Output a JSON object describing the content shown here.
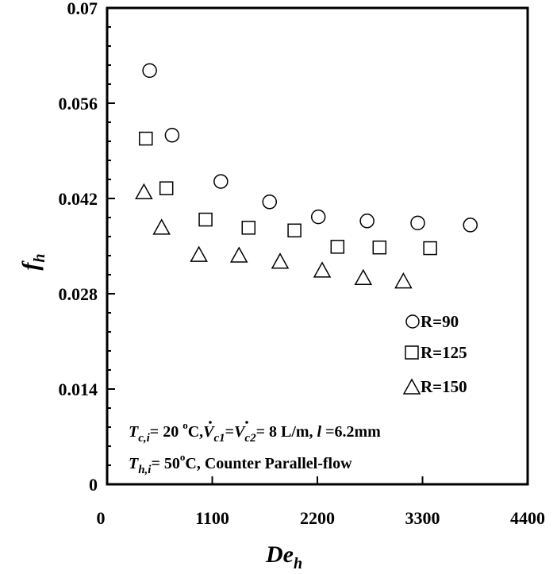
{
  "chart_data": {
    "type": "scatter",
    "title": "",
    "xlabel": "De",
    "xlabel_sub": "h",
    "ylabel": "f",
    "ylabel_sub": "h",
    "xlim": [
      0,
      4400
    ],
    "ylim": [
      0,
      0.07
    ],
    "xticks": [
      0,
      1100,
      2200,
      3300,
      4400
    ],
    "xtick_labels": [
      "0",
      "1100",
      "2200",
      "3300",
      "4400"
    ],
    "yticks": [
      0,
      0.014,
      0.028,
      0.042,
      0.056,
      0.07
    ],
    "ytick_labels": [
      "0",
      "0.014",
      "0.028",
      "0.042",
      "0.056",
      "0.07"
    ],
    "grid": false,
    "legend_position": "right",
    "series": [
      {
        "name": "R=90",
        "marker": "circle",
        "x": [
          445,
          680,
          1190,
          1700,
          2210,
          2720,
          3250,
          3800
        ],
        "y": [
          0.0608,
          0.0513,
          0.0445,
          0.0415,
          0.0393,
          0.0387,
          0.0384,
          0.0381
        ]
      },
      {
        "name": "R=125",
        "marker": "square",
        "x": [
          405,
          620,
          1030,
          1480,
          1960,
          2410,
          2850,
          3380
        ],
        "y": [
          0.0508,
          0.0435,
          0.0389,
          0.0377,
          0.0373,
          0.0349,
          0.0348,
          0.0347
        ]
      },
      {
        "name": "R=150",
        "marker": "triangle",
        "x": [
          385,
          570,
          960,
          1380,
          1810,
          2250,
          2680,
          3100
        ],
        "y": [
          0.0429,
          0.0377,
          0.0337,
          0.0336,
          0.0327,
          0.0314,
          0.0303,
          0.0298
        ]
      }
    ],
    "annotations": {
      "line1": {
        "t_sym": "T",
        "t_sub": "c,i",
        "t_val": "= 20 ",
        "deg": "o",
        "unit": "C,",
        "v1_sym": "V",
        "v1_sub": "c1",
        "eq": "=",
        "v2_sym": "V",
        "v2_sub": "c2",
        "v_val": "= 8 L/m, ",
        "l_sym": "l",
        "l_val": " =6.2mm"
      },
      "line2": {
        "t_sym": "T",
        "t_sub": "h,i",
        "t_val": "= 50",
        "deg": "o",
        "rest": "C, Counter Parallel-flow"
      }
    }
  }
}
